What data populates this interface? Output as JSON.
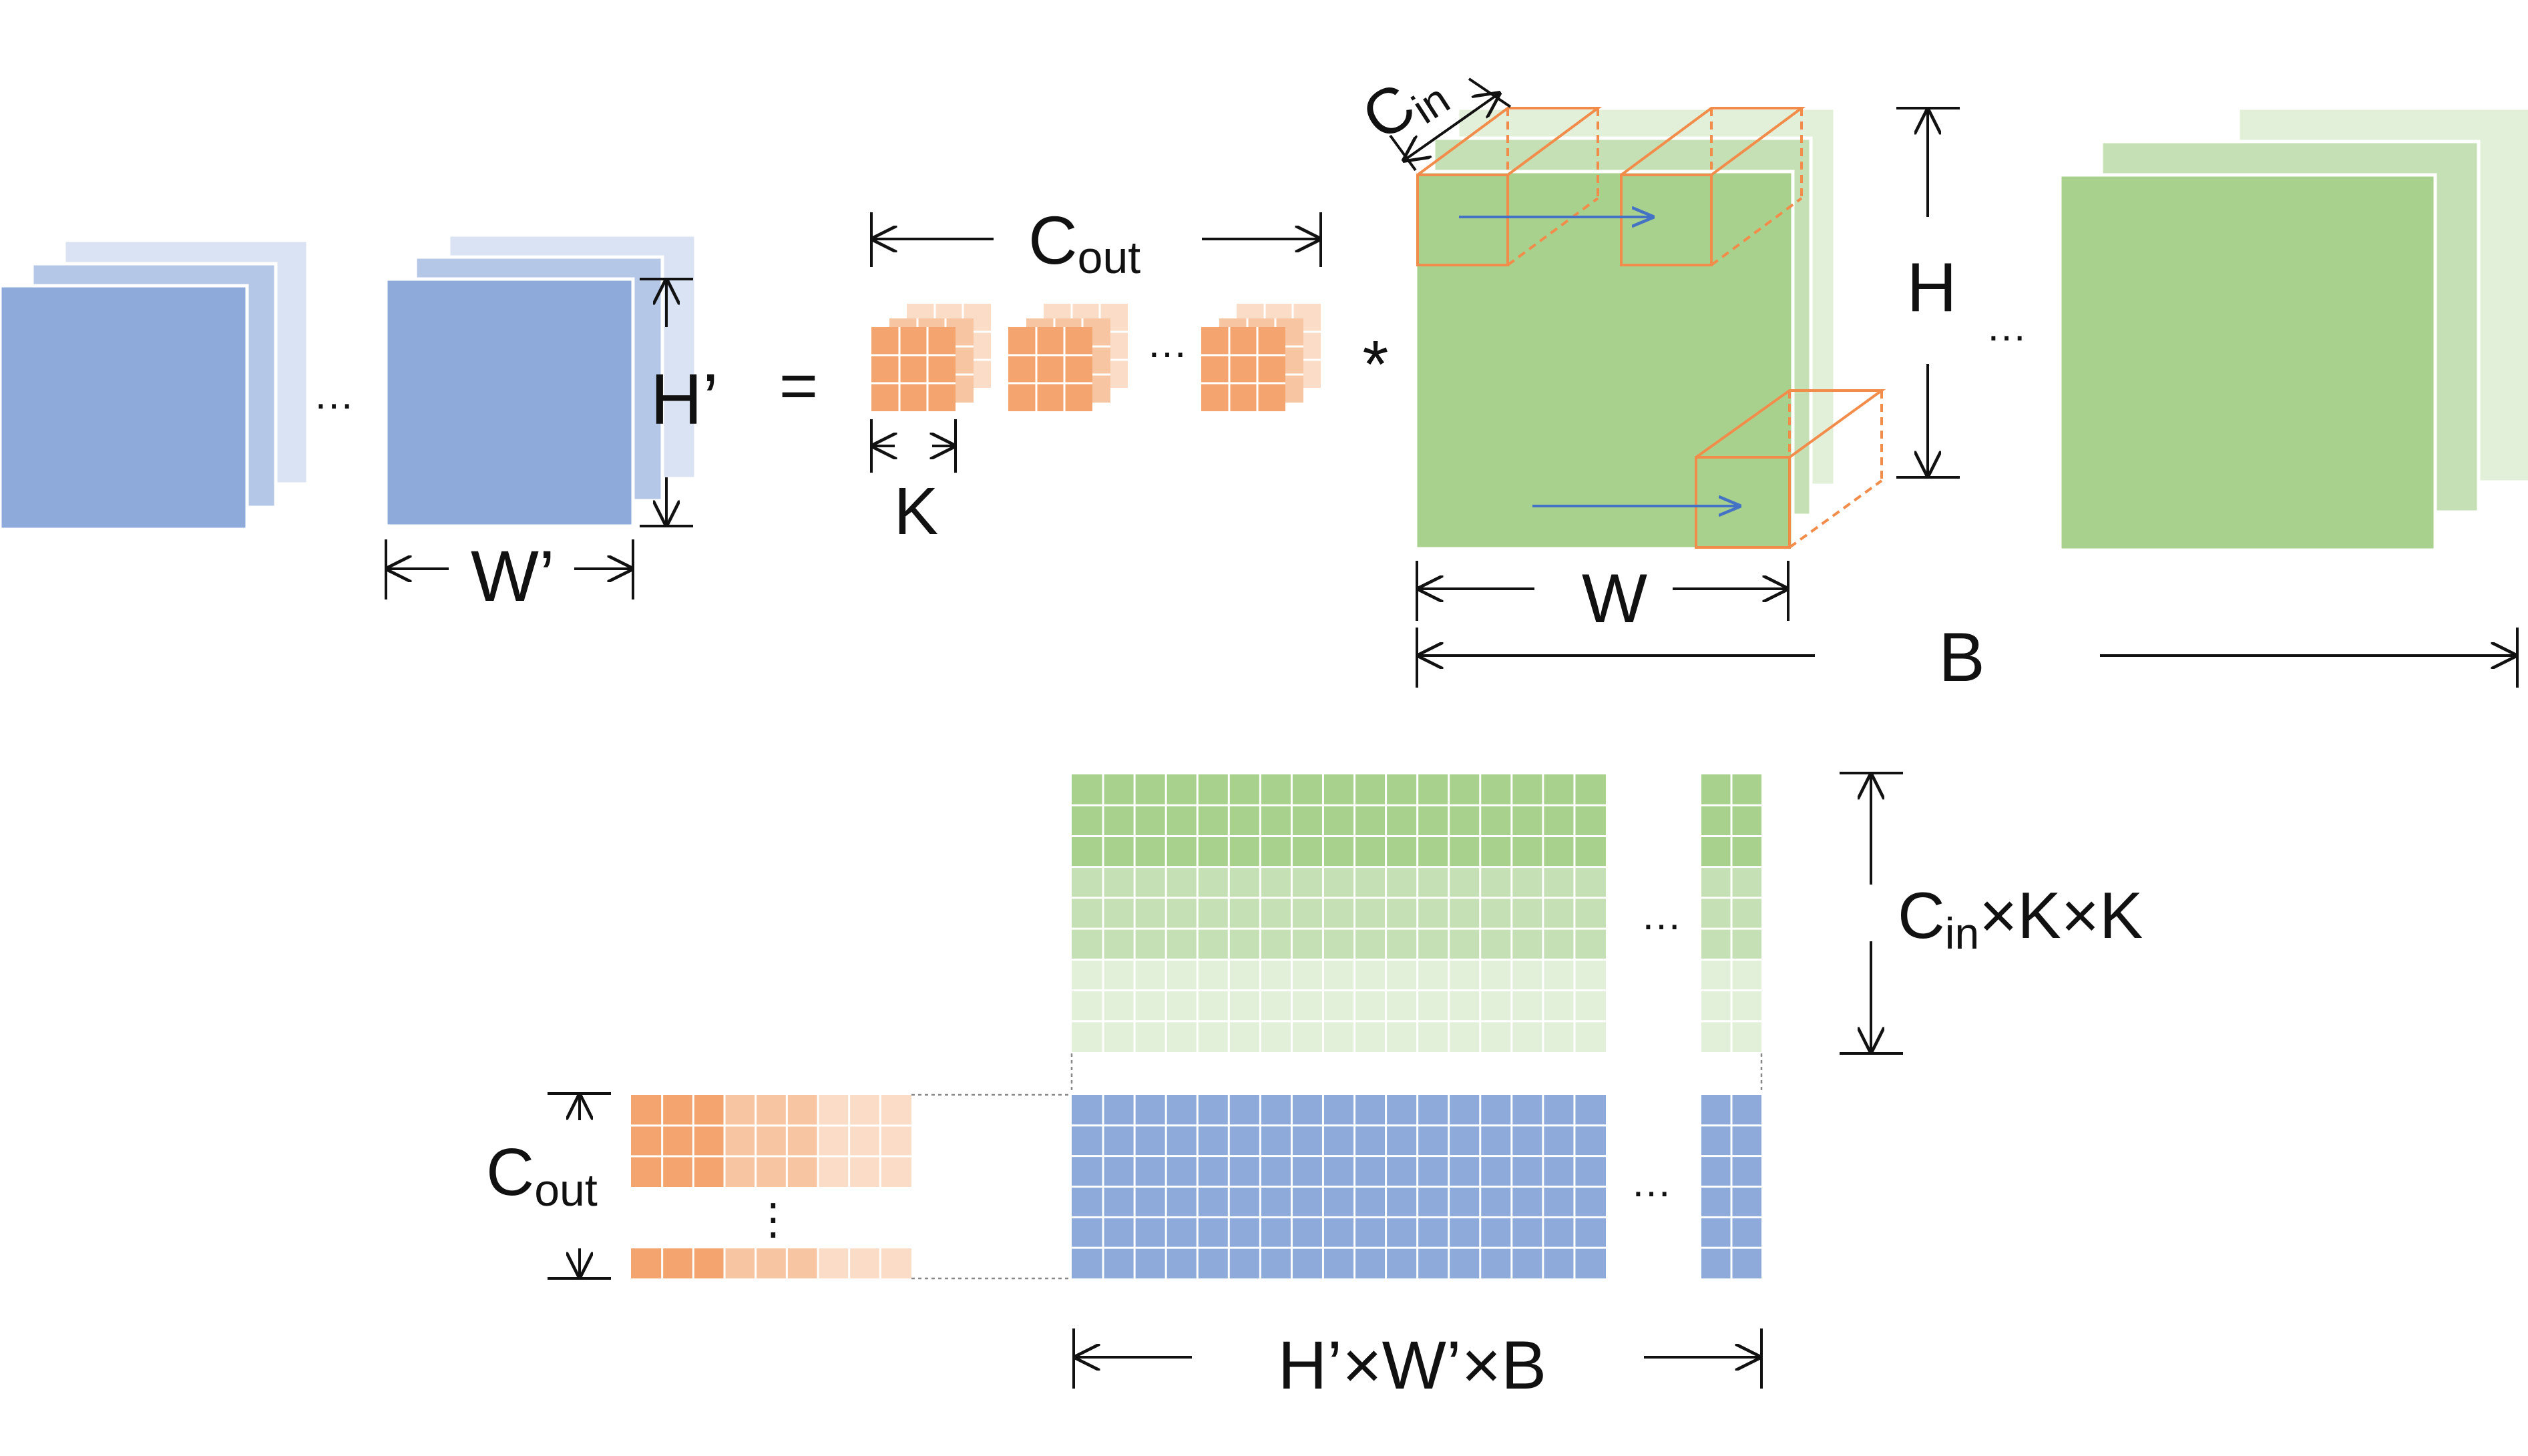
{
  "colors": {
    "blue": "#8eaadb",
    "blue_mid": "#b4c7e7",
    "blue_light": "#dae3f3",
    "green": "#a9d18e",
    "green_mid": "#c5e0b4",
    "green_light": "#e2f0d9",
    "orange": "#f4a46e",
    "orange_mid": "#f8c5a2",
    "orange_light": "#fbddc7",
    "orange_line": "#f28c4b",
    "arrow_blue": "#4472c4",
    "ink": "#111111"
  },
  "labels": {
    "h_prime": "H’",
    "w_prime": "W’",
    "equals": "=",
    "c_out_main": "C",
    "c_out_sub": "out",
    "k": "K",
    "star": "*",
    "c_in_main": "C",
    "c_in_sub": "in",
    "h": "H",
    "w": "W",
    "b": "B",
    "ellipsis": "…",
    "vdots": "⋮",
    "cin_kk_main": "C",
    "cin_kk_sub": "in",
    "cin_kk_rest": "×K×K",
    "cout_left_main": "C",
    "cout_left_sub": "out",
    "hwb": "H’×W’×B"
  }
}
